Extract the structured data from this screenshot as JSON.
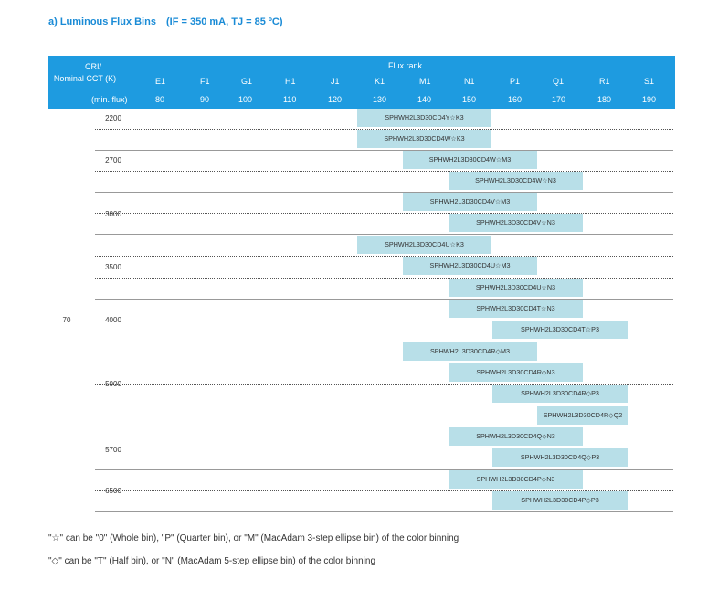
{
  "title": {
    "label": "a)   Luminous Flux Bins",
    "condition": "(IF = 350 mA, TJ = 85 ºC)"
  },
  "header": {
    "cri_label": "CRI/",
    "cct_label": "Nominal CCT (K)",
    "flux_rank_label": "Flux rank",
    "min_flux_label": "(min. flux)",
    "ranks": [
      "E1",
      "F1",
      "G1",
      "H1",
      "J1",
      "K1",
      "M1",
      "N1",
      "P1",
      "Q1",
      "R1",
      "S1"
    ],
    "min_flux": [
      "80",
      "90",
      "100",
      "110",
      "120",
      "130",
      "140",
      "150",
      "160",
      "170",
      "180",
      "190"
    ]
  },
  "cri_value": "70",
  "cct_groups": [
    "2200",
    "2700",
    "3000",
    "3500",
    "4000",
    "5000",
    "5700",
    "6500"
  ],
  "bins": [
    "SPHWH2L3D30CD4Y☆K3",
    "SPHWH2L3D30CD4W☆K3",
    "SPHWH2L3D30CD4W☆M3",
    "SPHWH2L3D30CD4W☆N3",
    "SPHWH2L3D30CD4V☆M3",
    "SPHWH2L3D30CD4V☆N3",
    "SPHWH2L3D30CD4U☆K3",
    "SPHWH2L3D30CD4U☆M3",
    "SPHWH2L3D30CD4U☆N3",
    "SPHWH2L3D30CD4T☆N3",
    "SPHWH2L3D30CD4T☆P3",
    "SPHWH2L3D30CD4R◇M3",
    "SPHWH2L3D30CD4R◇N3",
    "SPHWH2L3D30CD4R◇P3",
    "SPHWH2L3D30CD4R◇Q2",
    "SPHWH2L3D30CD4Q◇N3",
    "SPHWH2L3D30CD4Q◇P3",
    "SPHWH2L3D30CD4P◇N3",
    "SPHWH2L3D30CD4P◇P3"
  ],
  "notes": [
    "\"☆\" can be \"0\" (Whole bin), \"P\" (Quarter bin), or \"M\" (MacAdam 3-step ellipse bin) of the color binning",
    "\"◇\" can be \"T\" (Half bin), or \"N\" (MacAdam 5-step ellipse bin) of the color binning"
  ]
}
